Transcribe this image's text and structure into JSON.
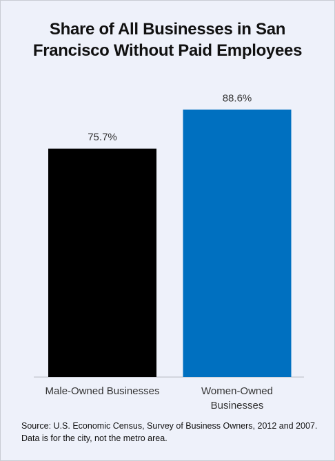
{
  "chart_data": {
    "type": "bar",
    "title": "Share of All Businesses in San Francisco Without Paid Employees",
    "categories": [
      "Male-Owned Businesses",
      "Women-Owned Businesses"
    ],
    "values": [
      75.7,
      88.6
    ],
    "value_labels": [
      "75.7%",
      "88.6%"
    ],
    "colors": [
      "#000000",
      "#0070c0"
    ],
    "source": "Source: U.S. Economic Census, Survey of Business Owners, 2012 and 2007. Data is for the city, not the metro area."
  }
}
